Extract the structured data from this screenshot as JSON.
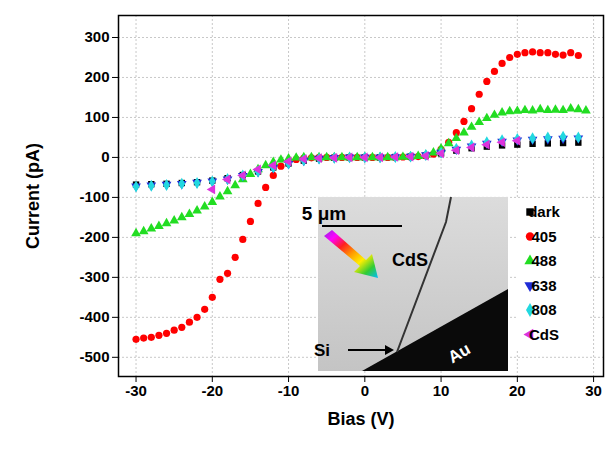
{
  "chart_data": {
    "type": "scatter",
    "x_label": "Bias (V)",
    "y_label": "Current (pA)",
    "xlim": [
      -32.3,
      31.3
    ],
    "ylim": [
      -548,
      355
    ],
    "xticks": [
      -30,
      -20,
      -10,
      0,
      10,
      20,
      30
    ],
    "yticks": [
      -500,
      -400,
      -300,
      -200,
      -100,
      0,
      100,
      200,
      300
    ],
    "grid": true,
    "legend": "lower right",
    "annotations": [
      "5 μm",
      "CdS",
      "Si",
      "Au"
    ],
    "series": [
      {
        "name": "dark",
        "color": "#000000",
        "marker": "square",
        "x": [
          -30,
          -28,
          -26,
          -24,
          -22,
          -20,
          -18,
          -16,
          -14,
          -12,
          -10,
          -8,
          -6,
          -4,
          -2,
          0,
          2,
          4,
          6,
          8,
          10,
          12,
          14,
          16,
          18,
          20,
          22,
          24,
          26,
          28
        ],
        "values": [
          -68,
          -67,
          -66,
          -64,
          -62,
          -58,
          -52,
          -44,
          -35,
          -25,
          -15,
          -8,
          -3,
          -1,
          0,
          0,
          0,
          1,
          2,
          5,
          10,
          17,
          23,
          27,
          30,
          32,
          34,
          35,
          36,
          37
        ]
      },
      {
        "name": "405",
        "color": "#ff0000",
        "marker": "circle",
        "x": [
          -30,
          -29,
          -28,
          -27,
          -26,
          -25,
          -24,
          -23,
          -22,
          -21,
          -20,
          -19,
          -18,
          -17,
          -16,
          -15,
          -14,
          -13,
          -12,
          -11,
          -10,
          -9,
          -8,
          -7,
          -6,
          -5,
          -4,
          -3,
          -2,
          -1,
          0,
          1,
          2,
          3,
          4,
          5,
          6,
          7,
          8,
          9,
          10,
          11,
          12,
          13,
          14,
          15,
          16,
          17,
          18,
          19,
          20,
          21,
          22,
          23,
          24,
          25,
          26,
          27,
          28
        ],
        "values": [
          -455,
          -452,
          -450,
          -445,
          -440,
          -432,
          -425,
          -412,
          -400,
          -380,
          -350,
          -305,
          -290,
          -250,
          -205,
          -160,
          -115,
          -75,
          -45,
          -22,
          -10,
          -5,
          -2,
          -1,
          0,
          0,
          0,
          0,
          0,
          0,
          0,
          0,
          0,
          0,
          0,
          1,
          1,
          2,
          4,
          8,
          20,
          38,
          62,
          90,
          122,
          158,
          190,
          215,
          235,
          250,
          258,
          262,
          264,
          262,
          262,
          258,
          256,
          262,
          255
        ]
      },
      {
        "name": "488",
        "color": "#22dd22",
        "marker": "triangle-up",
        "x": [
          -30,
          -29,
          -28,
          -27,
          -26,
          -25,
          -24,
          -23,
          -22,
          -21,
          -20,
          -19,
          -18,
          -17,
          -16,
          -15,
          -14,
          -13,
          -12,
          -11,
          -10,
          -9,
          -8,
          -7,
          -6,
          -5,
          -4,
          -3,
          -2,
          -1,
          0,
          1,
          2,
          3,
          4,
          5,
          6,
          7,
          8,
          9,
          10,
          11,
          12,
          13,
          14,
          15,
          16,
          17,
          18,
          19,
          20,
          21,
          22,
          23,
          24,
          25,
          26,
          27,
          28,
          29
        ],
        "values": [
          -190,
          -185,
          -178,
          -172,
          -165,
          -158,
          -150,
          -142,
          -133,
          -123,
          -112,
          -98,
          -85,
          -70,
          -55,
          -42,
          -30,
          -20,
          -12,
          -6,
          -3,
          -1,
          0,
          0,
          0,
          0,
          0,
          0,
          0,
          0,
          0,
          0,
          0,
          0,
          0,
          1,
          2,
          3,
          6,
          12,
          22,
          35,
          48,
          62,
          76,
          88,
          98,
          106,
          112,
          115,
          116,
          118,
          117,
          120,
          118,
          119,
          118,
          122,
          120,
          117
        ]
      },
      {
        "name": "638",
        "color": "#1f2bd6",
        "marker": "triangle-down",
        "x": [
          -30,
          -28,
          -26,
          -24,
          -22,
          -20,
          -18,
          -16,
          -14,
          -12,
          -10,
          -8,
          -6,
          -4,
          -2,
          0,
          2,
          4,
          6,
          8,
          10,
          12,
          14,
          16,
          18,
          20,
          22,
          24,
          26,
          28
        ],
        "values": [
          -72,
          -70,
          -68,
          -66,
          -63,
          -60,
          -55,
          -46,
          -36,
          -26,
          -16,
          -8,
          -3,
          -1,
          0,
          0,
          0,
          1,
          2,
          6,
          12,
          20,
          28,
          35,
          40,
          43,
          45,
          46,
          47,
          48
        ]
      },
      {
        "name": "808",
        "color": "#22d8e0",
        "marker": "diamond",
        "x": [
          -30,
          -28,
          -26,
          -24,
          -22,
          -20,
          -18,
          -16,
          -14,
          -12,
          -10,
          -8,
          -6,
          -4,
          -2,
          0,
          2,
          4,
          6,
          8,
          10,
          12,
          14,
          16,
          18,
          20,
          22,
          24,
          26,
          28
        ],
        "values": [
          -73,
          -71,
          -69,
          -66,
          -64,
          -60,
          -54,
          -45,
          -35,
          -25,
          -15,
          -7,
          -3,
          -1,
          0,
          0,
          0,
          1,
          2,
          6,
          12,
          22,
          30,
          38,
          43,
          46,
          48,
          50,
          52,
          50
        ]
      },
      {
        "name": "CdS",
        "color": "#dd33dd",
        "marker": "triangle-left",
        "x": [
          -20,
          -18,
          -16,
          -14,
          -12,
          -10,
          -8,
          -6,
          -4,
          -2,
          0,
          2,
          4,
          6,
          8,
          10,
          12,
          14,
          16,
          18,
          20
        ],
        "values": [
          -80,
          -55,
          -45,
          -30,
          -20,
          -10,
          -4,
          -2,
          -1,
          0,
          0,
          0,
          1,
          2,
          4,
          10,
          18,
          25,
          32,
          38,
          42
        ]
      }
    ]
  }
}
